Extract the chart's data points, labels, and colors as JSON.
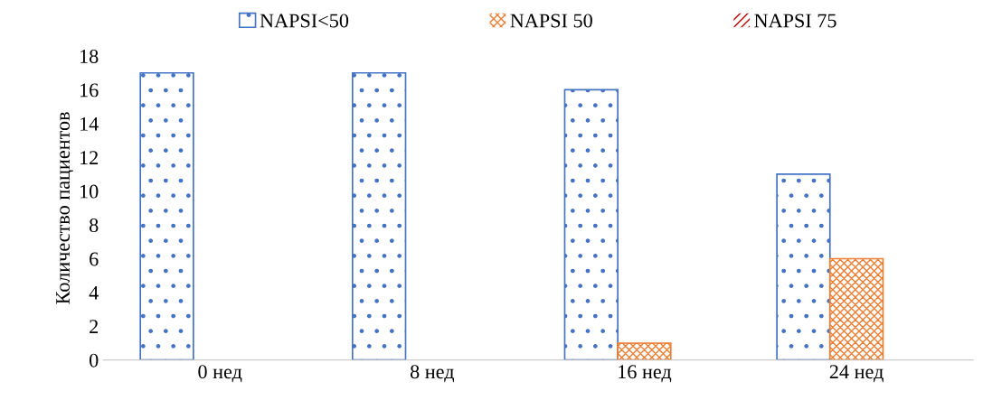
{
  "chart_data": {
    "type": "bar",
    "ylabel": "Количество пациентов",
    "categories": [
      "0 нед",
      "8 нед",
      "16 нед",
      "24 нед"
    ],
    "series": [
      {
        "name": "NAPSI<50",
        "color": "#4472c4",
        "values": [
          17,
          17,
          16,
          11
        ]
      },
      {
        "name": "NAPSI 50",
        "color": "#ed7d31",
        "values": [
          0,
          0,
          1,
          6
        ]
      },
      {
        "name": "NAPSI 75",
        "color": "#c00000",
        "values": [
          0,
          0,
          0,
          0
        ]
      }
    ],
    "ylim": [
      0,
      18
    ],
    "yticks": [
      0,
      2,
      4,
      6,
      8,
      10,
      12,
      14,
      16,
      18
    ],
    "grid": false,
    "legend": "top"
  }
}
